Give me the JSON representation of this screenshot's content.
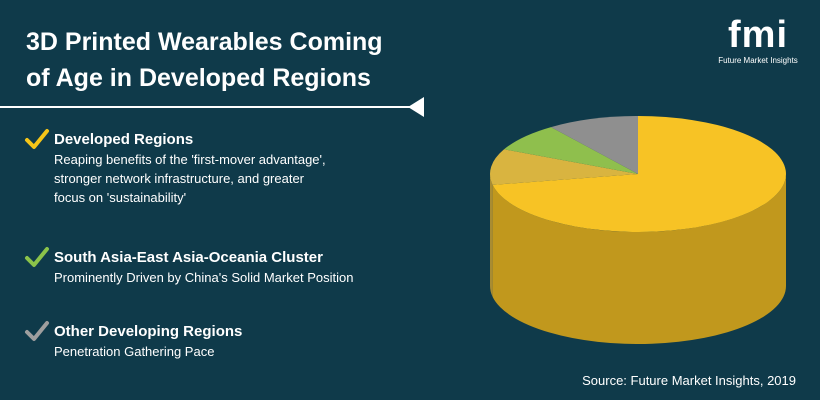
{
  "header": {
    "title_line1": "3D Printed Wearables Coming",
    "title_line2": "of Age in Developed Regions"
  },
  "logo": {
    "mark": "fmi",
    "tagline": "Future Market Insights"
  },
  "items": [
    {
      "title": "Developed Regions",
      "desc_lines": [
        "Reaping benefits of the 'first-mover advantage',",
        "stronger network infrastructure, and greater",
        "focus on 'sustainability'"
      ],
      "check_icon": "checkmark-icon",
      "color": "#f5c518"
    },
    {
      "title": "South Asia-East Asia-Oceania Cluster",
      "desc_lines": [
        "Prominently Driven by China's Solid Market Position"
      ],
      "check_icon": "checkmark-icon",
      "color": "#8bc34a"
    },
    {
      "title": "Other Developing Regions",
      "desc_lines": [
        "Penetration Gathering Pace"
      ],
      "check_icon": "checkmark-icon",
      "color": "#9e9e9e"
    }
  ],
  "chart_data": {
    "type": "pie",
    "style": "3d",
    "slices": [
      {
        "value": 72,
        "color": "#f7c325"
      },
      {
        "value": 10,
        "color": "#d9b440"
      },
      {
        "value": 8,
        "color": "#8fbf4d"
      },
      {
        "value": 10,
        "color": "#8f8f8f"
      }
    ]
  },
  "footer": {
    "source": "Source: Future Market Insights, 2019"
  },
  "colors": {
    "background": "#0f3a4a",
    "text": "#ffffff"
  }
}
